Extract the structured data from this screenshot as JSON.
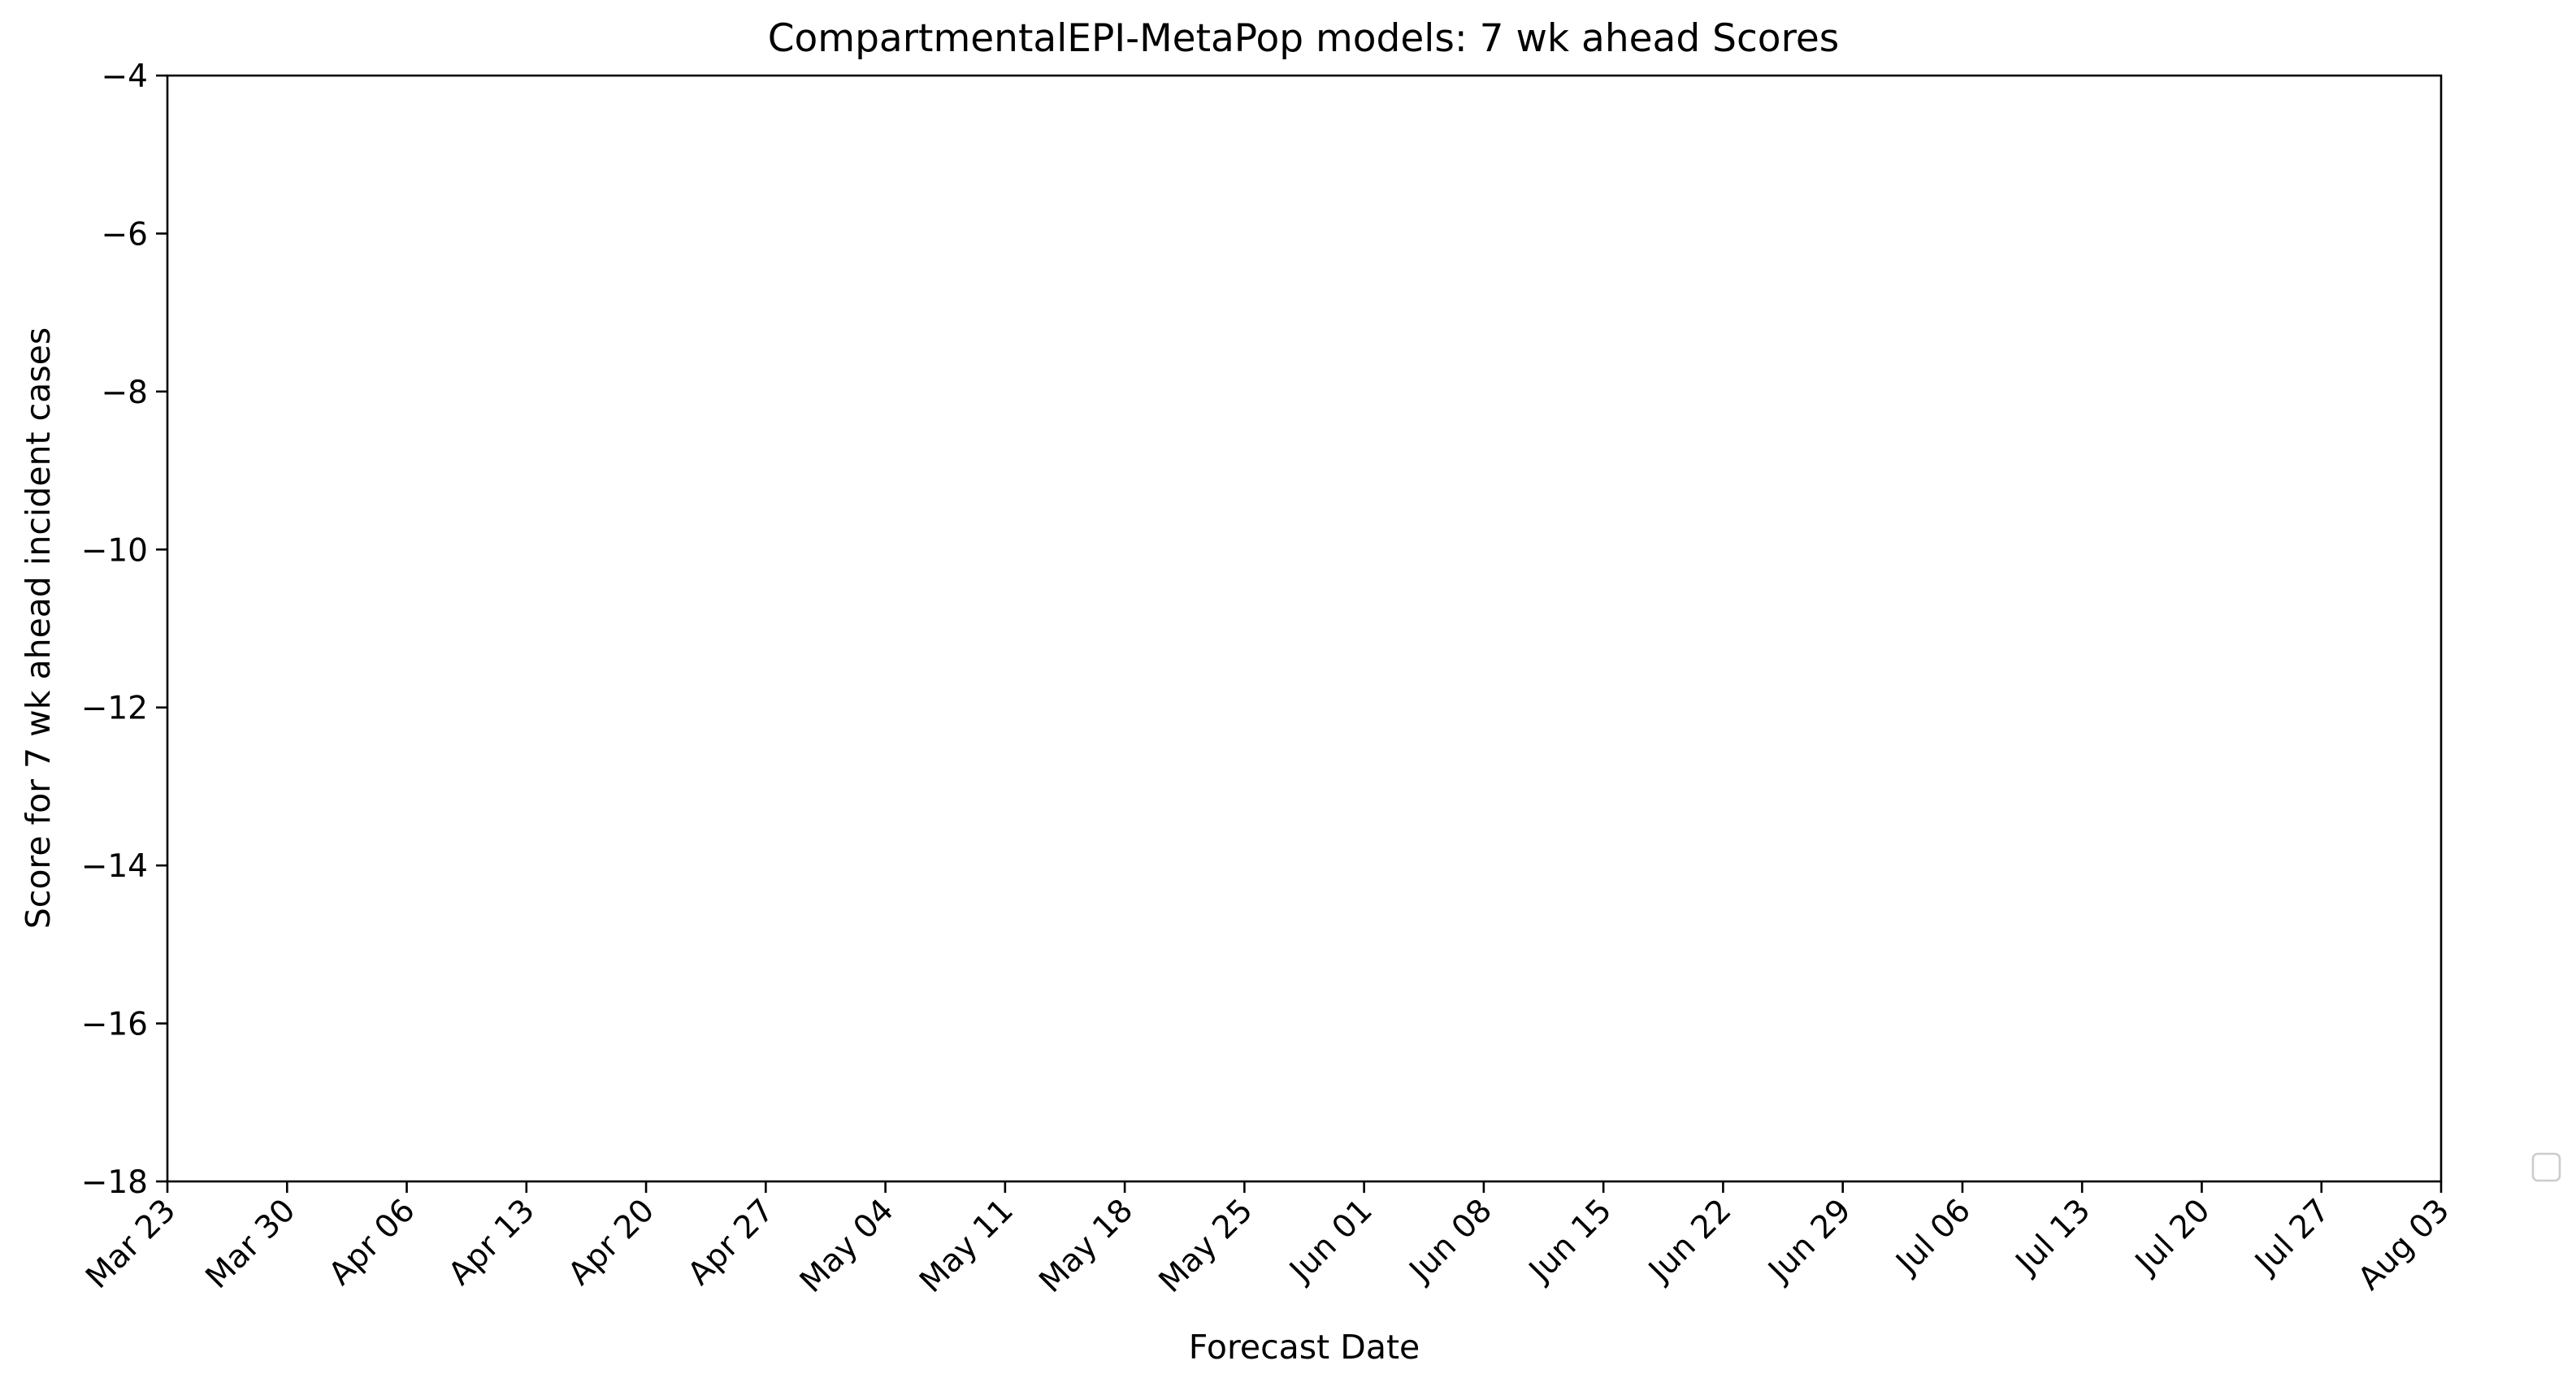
{
  "chart_data": {
    "type": "line",
    "title": "CompartmentalEPI-MetaPop models: 7 wk ahead Scores",
    "xlabel": "Forecast Date",
    "ylabel": "Score for 7 wk ahead incident cases",
    "x_ticks": [
      "Mar 23",
      "Mar 30",
      "Apr 06",
      "Apr 13",
      "Apr 20",
      "Apr 27",
      "May 04",
      "May 11",
      "May 18",
      "May 25",
      "Jun 01",
      "Jun 08",
      "Jun 15",
      "Jun 22",
      "Jun 29",
      "Jul 06",
      "Jul 13",
      "Jul 20",
      "Jul 27",
      "Aug 03"
    ],
    "xlim": [
      "Mar 23",
      "Aug 03"
    ],
    "y_ticks": [
      -4,
      -6,
      -8,
      -10,
      -12,
      -14,
      -16,
      -18
    ],
    "ylim": [
      -18,
      -4
    ],
    "grid": false,
    "legend_position": "right",
    "series": []
  }
}
